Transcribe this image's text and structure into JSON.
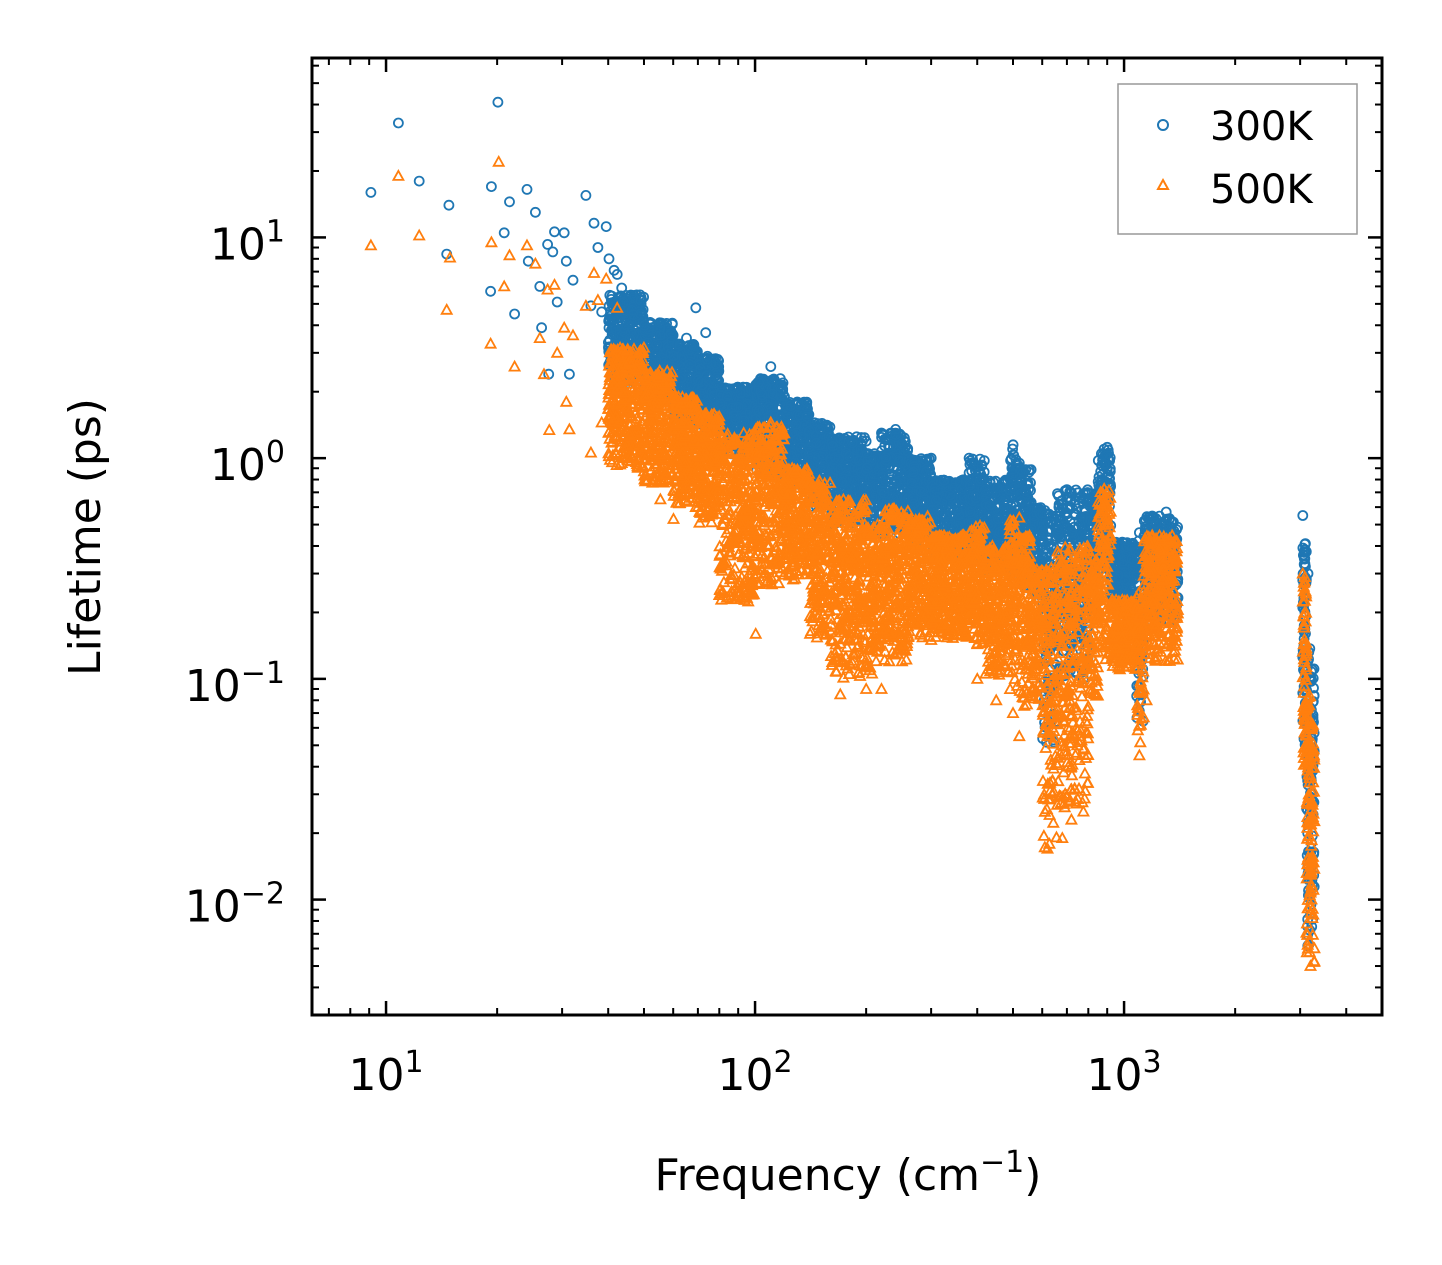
{
  "chart_data": {
    "type": "scatter",
    "xscale": "log",
    "yscale": "log",
    "xlabel": "Frequency (cm",
    "xlabel_sup": "−1",
    "xlabel_tail": ")",
    "ylabel": "Lifetime (ps)",
    "xlim": [
      6.3,
      5000
    ],
    "ylim": [
      0.003,
      65
    ],
    "xticks": [
      {
        "base": "10",
        "exp": "1",
        "value": 10
      },
      {
        "base": "10",
        "exp": "2",
        "value": 100
      },
      {
        "base": "10",
        "exp": "3",
        "value": 1000
      }
    ],
    "yticks": [
      {
        "base": "10",
        "exp": "1",
        "value": 10
      },
      {
        "base": "10",
        "exp": "0",
        "value": 1
      },
      {
        "base": "10",
        "exp": "−1",
        "value": 0.1
      },
      {
        "base": "10",
        "exp": "−2",
        "value": 0.01
      }
    ],
    "legend_position": "top-right",
    "series": [
      {
        "name": "300K",
        "marker": "circle-open",
        "color": "#1f77b4",
        "points": [
          [
            9.1,
            16
          ],
          [
            10.8,
            33
          ],
          [
            12.3,
            18
          ],
          [
            14.8,
            14
          ],
          [
            14.6,
            8.4
          ],
          [
            19.3,
            17
          ],
          [
            19.2,
            5.7
          ],
          [
            20.1,
            41
          ],
          [
            20.9,
            10.5
          ],
          [
            21.6,
            14.5
          ],
          [
            22.3,
            4.5
          ],
          [
            24.1,
            16.5
          ],
          [
            24.3,
            7.8
          ],
          [
            25.4,
            13
          ],
          [
            26.1,
            6
          ],
          [
            26.4,
            3.9
          ],
          [
            27.4,
            9.3
          ],
          [
            27.6,
            2.4
          ],
          [
            28.3,
            8.6
          ],
          [
            28.6,
            10.6
          ],
          [
            29.1,
            5.1
          ],
          [
            30.4,
            10.5
          ],
          [
            30.8,
            7.8
          ],
          [
            31.4,
            2.4
          ],
          [
            32.1,
            6.4
          ],
          [
            34.8,
            15.5
          ],
          [
            35.9,
            4.9
          ],
          [
            36.6,
            11.6
          ],
          [
            37.5,
            9
          ],
          [
            38.4,
            4.6
          ],
          [
            39.5,
            11.2
          ],
          [
            40.2,
            8
          ],
          [
            41.5,
            7.1
          ],
          [
            42.3,
            6.8
          ],
          [
            43.5,
            5.9
          ],
          [
            50.2,
            4
          ],
          [
            55.4,
            3.6
          ],
          [
            60.1,
            2.9
          ],
          [
            65.2,
            3.5
          ],
          [
            69.1,
            4.8
          ],
          [
            73.5,
            3.7
          ],
          [
            74.2,
            2.8
          ],
          [
            80.2,
            1.6
          ],
          [
            90.1,
            1.7
          ],
          [
            100.4,
            1.5
          ],
          [
            110.3,
            2.6
          ],
          [
            120.2,
            1.9
          ],
          [
            150.1,
            1.35
          ],
          [
            180.2,
            1.02
          ],
          [
            220.1,
            1.3
          ],
          [
            240.3,
            1.35
          ],
          [
            300.1,
            1.0
          ],
          [
            380.2,
            1.0
          ],
          [
            500.3,
            1.15
          ],
          [
            520.1,
            0.95
          ],
          [
            560.2,
            0.63
          ],
          [
            600.1,
            0.45
          ],
          [
            700.1,
            0.72
          ],
          [
            900.2,
            1.12
          ],
          [
            1050.1,
            0.35
          ],
          [
            1100.2,
            0.46
          ],
          [
            1300.4,
            0.57
          ],
          [
            3050.1,
            0.55
          ],
          [
            3100.2,
            0.41
          ],
          [
            3150.1,
            0.3
          ]
        ],
        "bands": [
          [
            40,
            50,
            2.2,
            5.5
          ],
          [
            50,
            60,
            1.8,
            4.2
          ],
          [
            60,
            70,
            1.5,
            3.3
          ],
          [
            70,
            80,
            1.3,
            2.9
          ],
          [
            80,
            100,
            1.0,
            2.1
          ],
          [
            100,
            120,
            0.85,
            2.3
          ],
          [
            120,
            140,
            0.75,
            1.8
          ],
          [
            140,
            160,
            0.6,
            1.45
          ],
          [
            160,
            200,
            0.5,
            1.25
          ],
          [
            200,
            220,
            0.45,
            1.05
          ],
          [
            220,
            260,
            0.45,
            1.3
          ],
          [
            260,
            300,
            0.42,
            1.0
          ],
          [
            300,
            380,
            0.35,
            0.8
          ],
          [
            380,
            420,
            0.35,
            1.0
          ],
          [
            420,
            490,
            0.3,
            0.8
          ],
          [
            490,
            520,
            0.28,
            1.1
          ],
          [
            520,
            560,
            0.25,
            0.9
          ],
          [
            560,
            600,
            0.23,
            0.6
          ],
          [
            600,
            660,
            0.05,
            0.58
          ],
          [
            660,
            800,
            0.1,
            0.72
          ],
          [
            800,
            850,
            0.2,
            0.7
          ],
          [
            850,
            920,
            0.3,
            1.1
          ],
          [
            920,
            1080,
            0.2,
            0.42
          ],
          [
            1080,
            1130,
            0.06,
            0.45
          ],
          [
            1130,
            1400,
            0.18,
            0.55
          ],
          [
            3050,
            3120,
            0.05,
            0.42
          ],
          [
            3120,
            3200,
            0.006,
            0.14
          ],
          [
            3200,
            3280,
            0.006,
            0.12
          ]
        ]
      },
      {
        "name": "500K",
        "marker": "triangle-open",
        "color": "#ff7f0e",
        "points": [
          [
            9.1,
            9.2
          ],
          [
            10.8,
            19
          ],
          [
            12.3,
            10.2
          ],
          [
            14.6,
            4.7
          ],
          [
            14.9,
            8.1
          ],
          [
            19.3,
            9.5
          ],
          [
            19.2,
            3.3
          ],
          [
            20.2,
            22
          ],
          [
            20.9,
            6
          ],
          [
            21.6,
            8.3
          ],
          [
            22.3,
            2.6
          ],
          [
            24.1,
            9.2
          ],
          [
            25.4,
            7.6
          ],
          [
            26.1,
            3.5
          ],
          [
            26.8,
            2.4
          ],
          [
            27.4,
            5.8
          ],
          [
            28.6,
            6.1
          ],
          [
            29.1,
            3
          ],
          [
            27.7,
            1.34
          ],
          [
            30.4,
            3.9
          ],
          [
            30.8,
            1.8
          ],
          [
            31.4,
            1.35
          ],
          [
            32.1,
            3.6
          ],
          [
            34.8,
            4.9
          ],
          [
            35.9,
            1.06
          ],
          [
            36.6,
            6.9
          ],
          [
            37.5,
            5.2
          ],
          [
            38.4,
            1.45
          ],
          [
            39.5,
            6.5
          ],
          [
            40.2,
            1.02
          ],
          [
            42.3,
            4.8
          ],
          [
            43.5,
            0.95
          ],
          [
            50.2,
            0.8
          ],
          [
            55.4,
            0.65
          ],
          [
            60.1,
            0.53
          ],
          [
            65.2,
            0.78
          ],
          [
            69.1,
            0.6
          ],
          [
            73.5,
            0.55
          ],
          [
            80.2,
            0.32
          ],
          [
            90.1,
            0.27
          ],
          [
            100.4,
            0.16
          ],
          [
            110.3,
            1.45
          ],
          [
            120.2,
            0.5
          ],
          [
            150.1,
            0.55
          ],
          [
            170.2,
            0.085
          ],
          [
            200.1,
            0.09
          ],
          [
            220.1,
            0.09
          ],
          [
            250.1,
            0.12
          ],
          [
            300.2,
            0.15
          ],
          [
            400.1,
            0.1
          ],
          [
            450.2,
            0.08
          ],
          [
            500.1,
            0.07
          ],
          [
            520.1,
            0.055
          ],
          [
            620.1,
            0.017
          ],
          [
            680.2,
            0.019
          ],
          [
            720.1,
            0.023
          ],
          [
            800.1,
            0.075
          ],
          [
            1100.1,
            0.045
          ],
          [
            1150.2,
            0.08
          ],
          [
            1300.1,
            0.14
          ],
          [
            3050.1,
            0.3
          ],
          [
            3150.1,
            0.006
          ],
          [
            3200.2,
            0.005
          ]
        ],
        "bands": [
          [
            40,
            50,
            0.9,
            3.2
          ],
          [
            50,
            60,
            0.75,
            2.5
          ],
          [
            60,
            70,
            0.62,
            1.9
          ],
          [
            70,
            80,
            0.5,
            1.6
          ],
          [
            80,
            100,
            0.22,
            1.3
          ],
          [
            100,
            120,
            0.25,
            1.4
          ],
          [
            120,
            140,
            0.28,
            0.9
          ],
          [
            140,
            160,
            0.15,
            0.8
          ],
          [
            160,
            200,
            0.1,
            0.65
          ],
          [
            200,
            220,
            0.1,
            0.5
          ],
          [
            220,
            260,
            0.12,
            0.6
          ],
          [
            260,
            300,
            0.15,
            0.55
          ],
          [
            300,
            380,
            0.15,
            0.45
          ],
          [
            380,
            420,
            0.14,
            0.5
          ],
          [
            420,
            490,
            0.1,
            0.4
          ],
          [
            490,
            520,
            0.08,
            0.55
          ],
          [
            520,
            560,
            0.07,
            0.45
          ],
          [
            560,
            600,
            0.08,
            0.32
          ],
          [
            600,
            660,
            0.016,
            0.32
          ],
          [
            660,
            800,
            0.025,
            0.4
          ],
          [
            800,
            850,
            0.08,
            0.35
          ],
          [
            850,
            920,
            0.12,
            0.75
          ],
          [
            920,
            1080,
            0.11,
            0.23
          ],
          [
            1080,
            1130,
            0.045,
            0.25
          ],
          [
            1130,
            1400,
            0.12,
            0.45
          ],
          [
            3050,
            3120,
            0.04,
            0.3
          ],
          [
            3120,
            3200,
            0.005,
            0.09
          ],
          [
            3200,
            3280,
            0.005,
            0.07
          ]
        ]
      }
    ]
  }
}
